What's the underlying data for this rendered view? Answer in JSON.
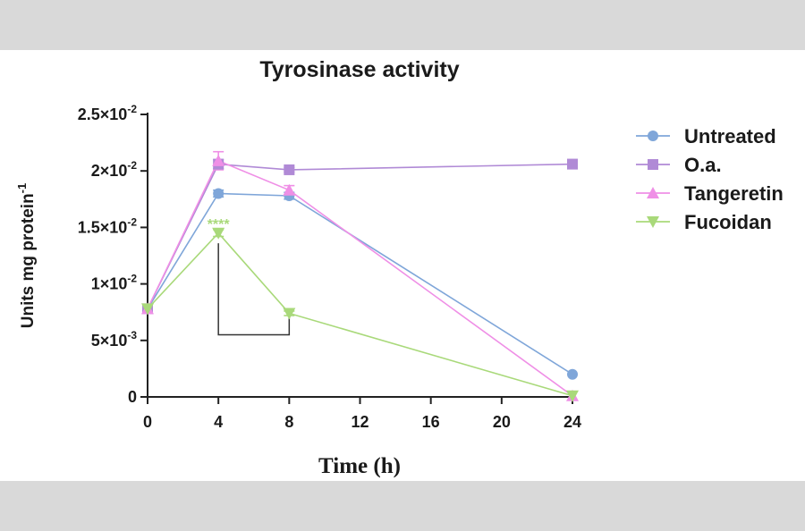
{
  "chart_data": {
    "type": "line",
    "title": "Tyrosinase activity",
    "xlabel": "Time (h)",
    "ylabel": "Units mg protein",
    "ylabel_superscript": "-1",
    "x": [
      0,
      4,
      8,
      24
    ],
    "xlim": [
      0,
      24
    ],
    "ylim": [
      0,
      0.025
    ],
    "x_ticks": [
      0,
      4,
      8,
      12,
      16,
      20,
      24
    ],
    "x_tick_labels": [
      "0",
      "4",
      "8",
      "12",
      "16",
      "20",
      "24"
    ],
    "y_ticks": [
      {
        "value": 0.025,
        "base": "2.5×10",
        "exp": "-2"
      },
      {
        "value": 0.02,
        "base": "2×10",
        "exp": "-2"
      },
      {
        "value": 0.015,
        "base": "1.5×10",
        "exp": "-2"
      },
      {
        "value": 0.01,
        "base": "1×10",
        "exp": "-2"
      },
      {
        "value": 0.005,
        "base": "5×10",
        "exp": "-3"
      },
      {
        "value": 0,
        "base": "0",
        "exp": ""
      }
    ],
    "grid": false,
    "legend_position": "right",
    "series": [
      {
        "name": "Untreated",
        "color": "#7fa6d9",
        "marker": "circle",
        "values": [
          0.0078,
          0.018,
          0.0178,
          0.002
        ],
        "errors": [
          0,
          0.0003,
          0.0003,
          0
        ]
      },
      {
        "name": "O.a.",
        "color": "#b08ad6",
        "marker": "square",
        "values": [
          0.0078,
          0.0206,
          0.0201,
          0.0206
        ],
        "errors": [
          0,
          0.0004,
          0.0002,
          0.0004
        ]
      },
      {
        "name": "Tangeretin",
        "color": "#ef8fe6",
        "marker": "triangle-up",
        "values": [
          0.0078,
          0.0209,
          0.0183,
          0.0001
        ],
        "errors": [
          0,
          0.0008,
          0.0004,
          0
        ]
      },
      {
        "name": "Fucoidan",
        "color": "#a9d97a",
        "marker": "triangle-down",
        "values": [
          0.0078,
          0.0145,
          0.0074,
          0.0001
        ],
        "errors": [
          0,
          0.0003,
          0.0002,
          0
        ]
      }
    ],
    "annotations": [
      {
        "text": "****",
        "x": 4,
        "y": 0.0155,
        "color": "#a9d97a"
      }
    ],
    "bracket": {
      "x1": 4,
      "x2": 8,
      "y_low": 0.0055,
      "y1_top": 0.0136,
      "y2_top": 0.0071
    }
  }
}
